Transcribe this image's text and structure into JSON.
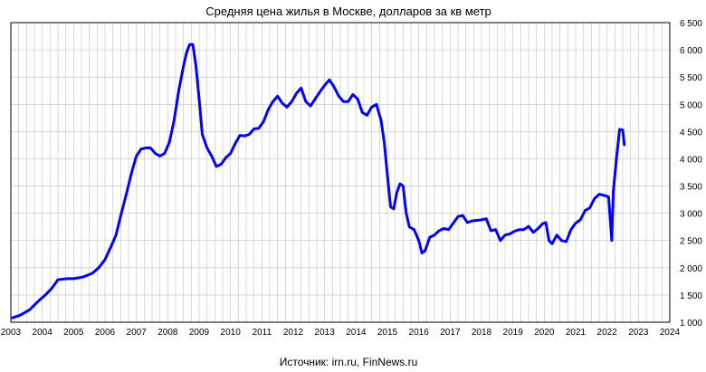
{
  "chart_data": {
    "type": "line",
    "title": "Средняя цена жилья в Москве, долларов за кв метр",
    "source": "Источник: irn.ru, FinNews.ru",
    "xlabel": "",
    "ylabel": "",
    "xlim": [
      2003,
      2024
    ],
    "ylim": [
      1000,
      6500
    ],
    "x_ticks": [
      "2003",
      "2004",
      "2005",
      "2006",
      "2007",
      "2008",
      "2009",
      "2010",
      "2011",
      "2012",
      "2013",
      "2014",
      "2015",
      "2016",
      "2017",
      "2018",
      "2019",
      "2020",
      "2021",
      "2022",
      "2023",
      "2024"
    ],
    "y_ticks": [
      "1 000",
      "1 500",
      "2 000",
      "2 500",
      "3 000",
      "3 500",
      "4 000",
      "4 500",
      "5 000",
      "5 500",
      "6 000",
      "6 500"
    ],
    "grid": true,
    "line_color": "#0000ff",
    "series": [
      {
        "name": "",
        "x": [
          2003.05,
          2003.3,
          2003.6,
          2003.9,
          2004.1,
          2004.3,
          2004.5,
          2004.8,
          2005.0,
          2005.3,
          2005.6,
          2005.8,
          2006.0,
          2006.2,
          2006.35,
          2006.5,
          2006.7,
          2006.85,
          2007.0,
          2007.15,
          2007.3,
          2007.45,
          2007.6,
          2007.75,
          2007.9,
          2008.05,
          2008.2,
          2008.35,
          2008.5,
          2008.6,
          2008.7,
          2008.8,
          2008.9,
          2009.0,
          2009.1,
          2009.25,
          2009.4,
          2009.55,
          2009.7,
          2009.85,
          2010.0,
          2010.15,
          2010.3,
          2010.45,
          2010.6,
          2010.75,
          2010.9,
          2011.05,
          2011.2,
          2011.35,
          2011.5,
          2011.65,
          2011.8,
          2011.95,
          2012.1,
          2012.25,
          2012.4,
          2012.55,
          2012.7,
          2012.85,
          2013.0,
          2013.15,
          2013.3,
          2013.45,
          2013.6,
          2013.75,
          2013.9,
          2014.05,
          2014.2,
          2014.35,
          2014.5,
          2014.65,
          2014.8,
          2014.9,
          2015.0,
          2015.1,
          2015.2,
          2015.3,
          2015.4,
          2015.5,
          2015.6,
          2015.7,
          2015.85,
          2016.0,
          2016.1,
          2016.2,
          2016.35,
          2016.5,
          2016.65,
          2016.8,
          2016.95,
          2017.1,
          2017.25,
          2017.4,
          2017.55,
          2017.7,
          2017.85,
          2018.0,
          2018.15,
          2018.3,
          2018.45,
          2018.6,
          2018.75,
          2018.9,
          2019.05,
          2019.2,
          2019.35,
          2019.5,
          2019.65,
          2019.8,
          2019.95,
          2020.05,
          2020.15,
          2020.25,
          2020.4,
          2020.55,
          2020.7,
          2020.85,
          2021.0,
          2021.15,
          2021.3,
          2021.45,
          2021.6,
          2021.75,
          2021.9,
          2022.05,
          2022.15,
          2022.2,
          2022.3,
          2022.4,
          2022.5,
          2022.55
        ],
        "values": [
          1080,
          1130,
          1230,
          1400,
          1500,
          1620,
          1780,
          1800,
          1800,
          1830,
          1900,
          2000,
          2150,
          2400,
          2600,
          2950,
          3400,
          3750,
          4050,
          4180,
          4200,
          4200,
          4100,
          4050,
          4100,
          4300,
          4700,
          5250,
          5700,
          5950,
          6100,
          6100,
          5700,
          5100,
          4450,
          4200,
          4050,
          3860,
          3900,
          4020,
          4100,
          4280,
          4430,
          4420,
          4450,
          4550,
          4560,
          4680,
          4900,
          5050,
          5150,
          5020,
          4950,
          5050,
          5200,
          5300,
          5050,
          4970,
          5100,
          5230,
          5350,
          5450,
          5320,
          5150,
          5050,
          5050,
          5180,
          5100,
          4850,
          4800,
          4950,
          5000,
          4700,
          4300,
          3700,
          3120,
          3080,
          3380,
          3540,
          3500,
          3000,
          2750,
          2700,
          2500,
          2270,
          2310,
          2560,
          2600,
          2680,
          2720,
          2700,
          2820,
          2940,
          2960,
          2830,
          2860,
          2870,
          2880,
          2900,
          2680,
          2700,
          2500,
          2600,
          2620,
          2670,
          2700,
          2700,
          2760,
          2650,
          2720,
          2810,
          2830,
          2500,
          2440,
          2600,
          2500,
          2480,
          2700,
          2820,
          2880,
          3050,
          3100,
          3270,
          3350,
          3330,
          3300,
          2500,
          3400,
          4000,
          4540,
          4530,
          4260
        ]
      }
    ]
  }
}
